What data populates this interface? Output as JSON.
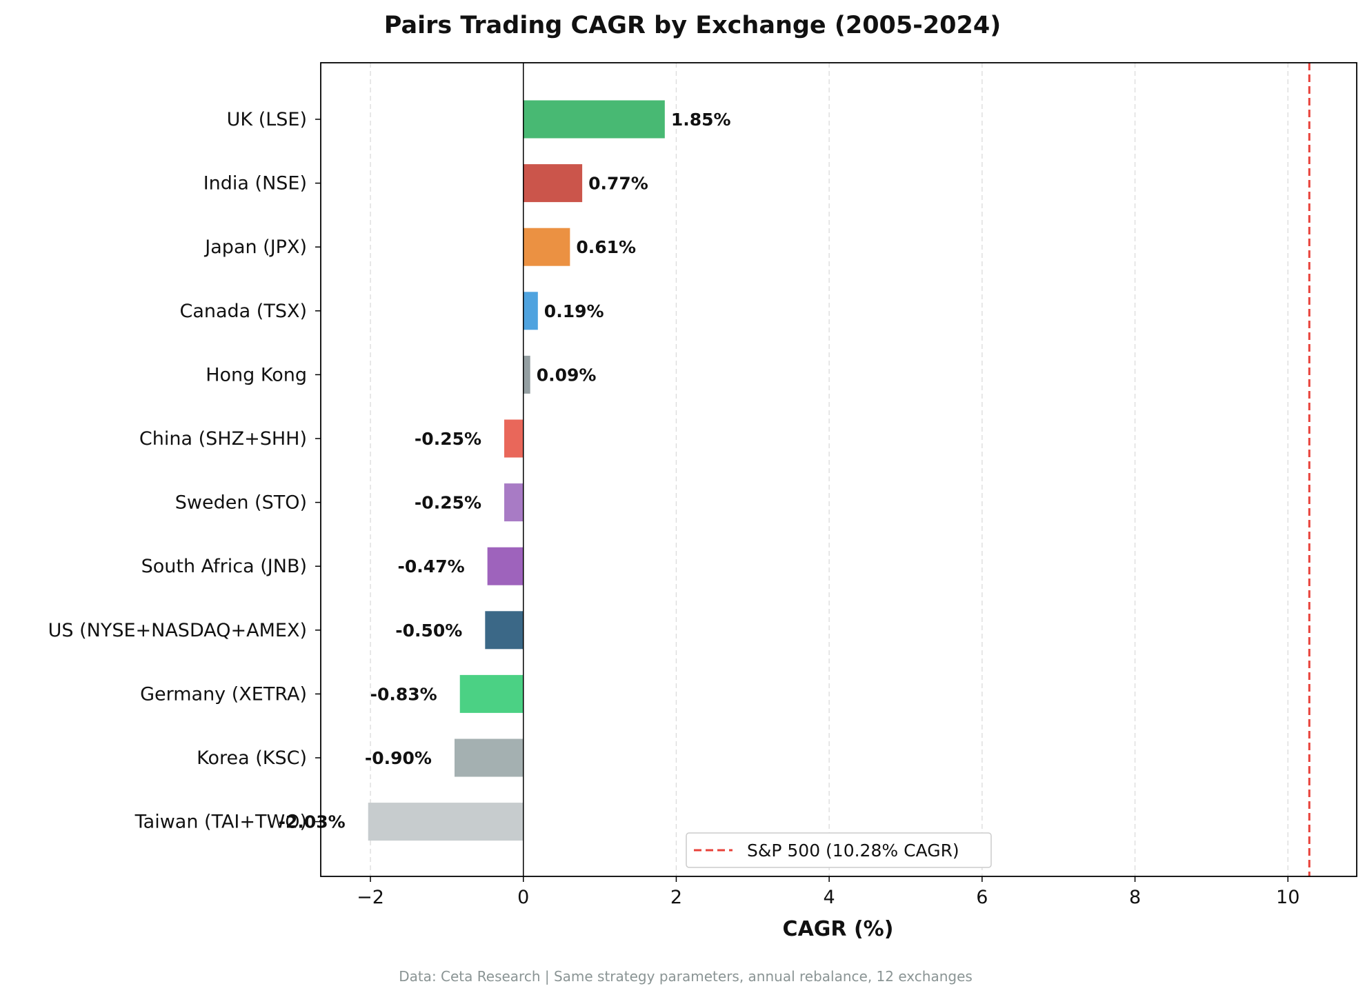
{
  "chart_data": {
    "type": "bar",
    "orientation": "horizontal",
    "title": "Pairs Trading CAGR by Exchange (2005-2024)",
    "xlabel": "CAGR (%)",
    "ylabel": "",
    "xlim": [
      -2.65,
      10.9
    ],
    "xticks": [
      -2,
      0,
      2,
      4,
      6,
      8,
      10
    ],
    "xtick_labels": [
      "−2",
      "0",
      "2",
      "4",
      "6",
      "8",
      "10"
    ],
    "grid": "vertical dashed",
    "categories": [
      "UK (LSE)",
      "India (NSE)",
      "Japan (JPX)",
      "Canada (TSX)",
      "Hong Kong",
      "China (SHZ+SHH)",
      "Sweden (STO)",
      "South Africa (JNB)",
      "US (NYSE+NASDAQ+AMEX)",
      "Germany (XETRA)",
      "Korea (KSC)",
      "Taiwan (TAI+TWO)"
    ],
    "values": [
      1.85,
      0.77,
      0.61,
      0.19,
      0.09,
      -0.25,
      -0.25,
      -0.47,
      -0.5,
      -0.83,
      -0.9,
      -2.03
    ],
    "value_labels": [
      "1.85%",
      "0.77%",
      "0.61%",
      "0.19%",
      "0.09%",
      "-0.25%",
      "-0.25%",
      "-0.47%",
      "-0.50%",
      "-0.83%",
      "-0.90%",
      "-2.03%"
    ],
    "colors": [
      "#48b973",
      "#cb554b",
      "#eb9142",
      "#4fa3df",
      "#949fa2",
      "#e9675a",
      "#a87bc5",
      "#9e63bc",
      "#3b6887",
      "#4bd184",
      "#a4b0b1",
      "#c7ccce"
    ],
    "reference_line": {
      "x": 10.28,
      "label": "S&P 500 (10.28% CAGR)",
      "color": "#e8423a",
      "style": "dashed"
    },
    "legend_position": "lower center",
    "footnote": "Data: Ceta Research | Same strategy parameters, annual rebalance, 12 exchanges"
  }
}
